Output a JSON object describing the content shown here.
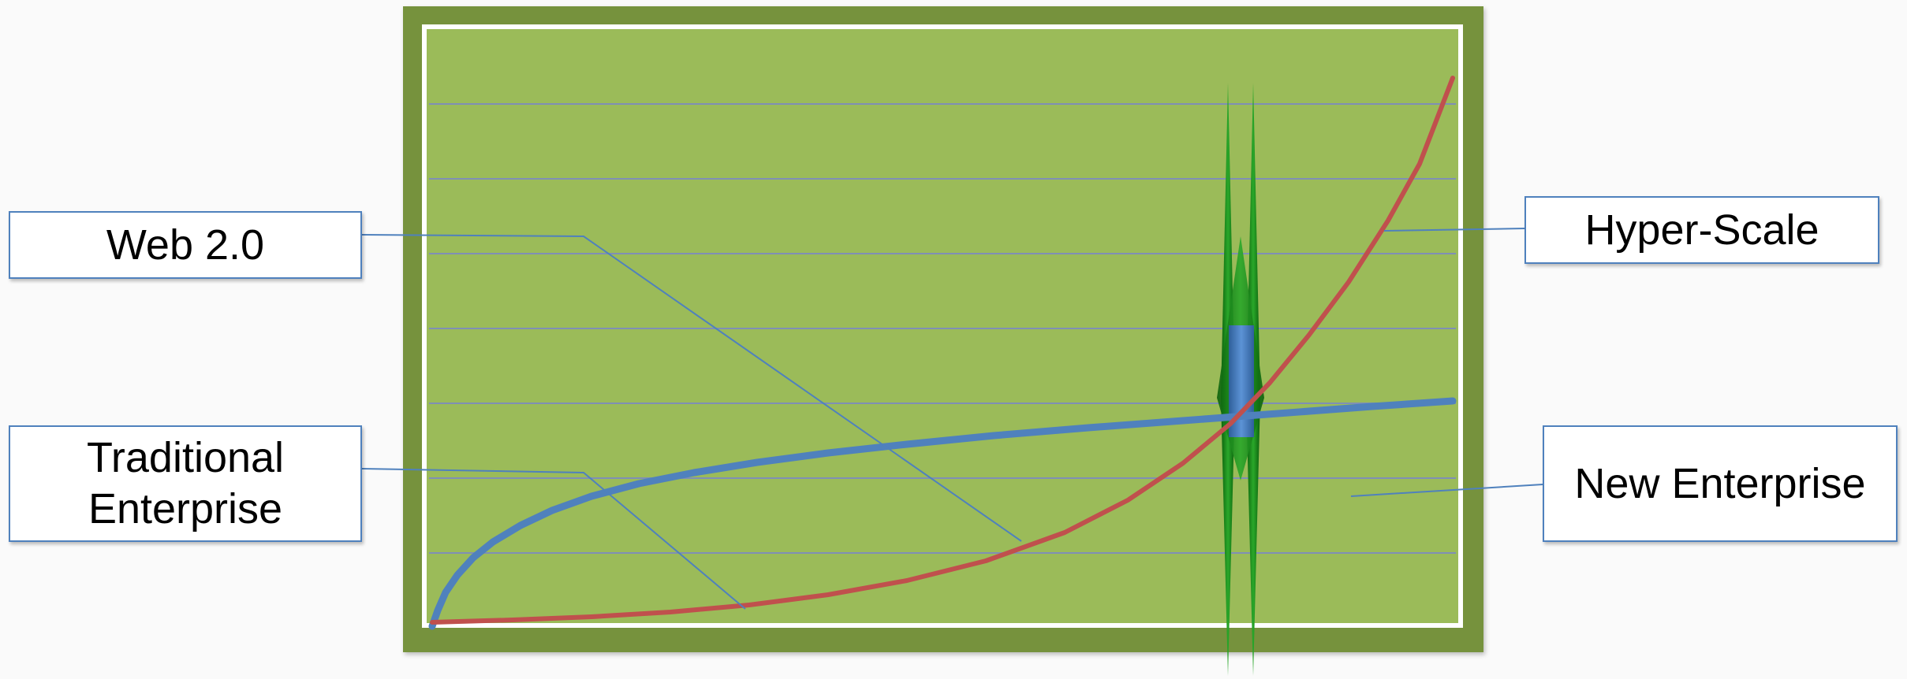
{
  "labels": {
    "web20": "Web 2.0",
    "traditional_line1": "Traditional",
    "traditional_line2": "Enterprise",
    "hyper_scale": "Hyper-Scale",
    "new_enterprise": "New Enterprise"
  },
  "colors": {
    "frame_outer": "#76923c",
    "frame_inner_border": "#ffffff",
    "plot_fill": "#9bbb59",
    "gridline": "#7f8fb5",
    "blue_curve": "#4f81bd",
    "red_curve": "#c0504d",
    "leader_line": "#4f81bd",
    "marker_green": "#1a7a1a",
    "marker_blue": "#4f81bd",
    "callout_border": "#4f81bd"
  },
  "icons": {
    "crossover_marker": "vertical-green-spindle-with-blue-bar"
  }
}
